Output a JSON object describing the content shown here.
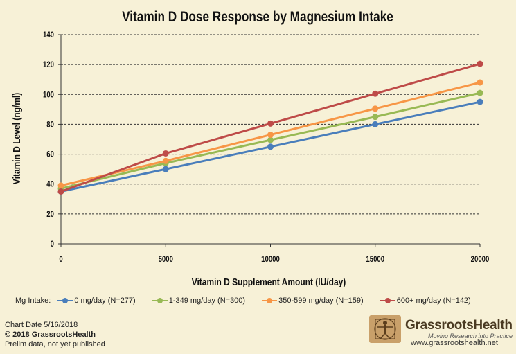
{
  "chart_data": {
    "type": "line",
    "title": "Vitamin D Dose Response by Magnesium Intake",
    "xlabel": "Vitamin D Supplement Amount (IU/day)",
    "ylabel": "Vitamin D Level (ng/ml)",
    "x": [
      0,
      5000,
      10000,
      15000,
      20000
    ],
    "xticks": [
      "0",
      "5000",
      "10000",
      "15000",
      "20000"
    ],
    "yticks": [
      "0",
      "20",
      "40",
      "60",
      "80",
      "100",
      "120",
      "140"
    ],
    "xlim": [
      0,
      20000
    ],
    "ylim": [
      0,
      140
    ],
    "grid": true,
    "legend_title": "Mg Intake:",
    "series": [
      {
        "name": "0 mg/day (N=277)",
        "color": "#4a7ebb",
        "values": [
          35,
          50,
          65,
          80,
          95
        ]
      },
      {
        "name": "1-349 mg/day (N=300)",
        "color": "#98b954",
        "values": [
          37,
          54,
          69.5,
          85,
          101
        ]
      },
      {
        "name": "350-599 mg/day (N=159)",
        "color": "#f79646",
        "values": [
          39,
          55.5,
          73,
          90.5,
          108
        ]
      },
      {
        "name": "600+ mg/day (N=142)",
        "color": "#be4b48",
        "values": [
          35,
          60.5,
          80.5,
          100.5,
          120.5
        ]
      }
    ]
  },
  "footer": {
    "chart_date": "Chart Date 5/16/2018",
    "copyright": "© 2018 GrassrootsHealth",
    "note": "Prelim data, not yet published"
  },
  "logo": {
    "name": "GrassrootsHealth",
    "tagline": "Moving Research into Practice",
    "url": "www.grassrootshealth.net"
  }
}
